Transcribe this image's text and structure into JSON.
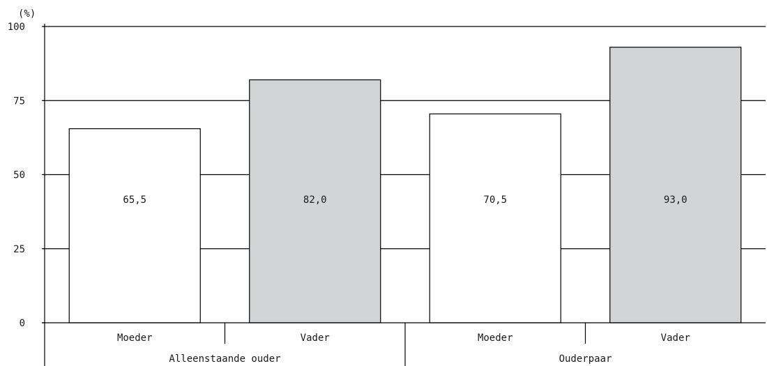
{
  "chart_data": {
    "type": "bar",
    "ylabel": "(%)",
    "ylim": [
      0,
      100
    ],
    "yticks": [
      "0",
      "25",
      "50",
      "75",
      "100"
    ],
    "grid": true,
    "groups": [
      {
        "label": "Alleenstaande ouder",
        "bars": [
          {
            "category": "Moeder",
            "value": 65.5,
            "value_label": "65,5",
            "color": "#ffffff"
          },
          {
            "category": "Vader",
            "value": 82.0,
            "value_label": "82,0",
            "color": "#d3d4d6"
          }
        ]
      },
      {
        "label": "Ouderpaar",
        "bars": [
          {
            "category": "Moeder",
            "value": 70.5,
            "value_label": "70,5",
            "color": "#ffffff"
          },
          {
            "category": "Vader",
            "value": 93.0,
            "value_label": "93,0",
            "color": "#d3d4d6"
          }
        ]
      }
    ]
  }
}
